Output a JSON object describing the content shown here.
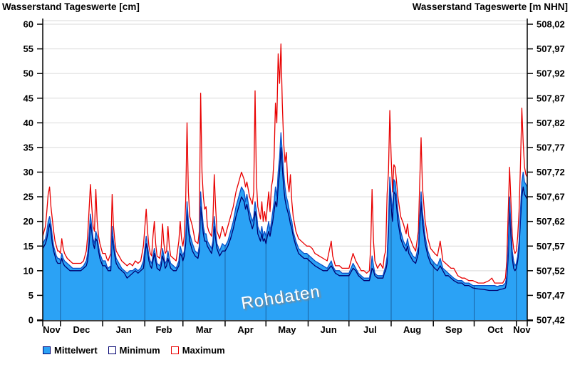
{
  "titles": {
    "left": "Wasserstand Tageswerte [cm]",
    "right": "Wasserstand Tageswerte [m NHN]"
  },
  "watermark": "Rohdaten",
  "legend": {
    "mittelwert": "Mittelwert",
    "minimum": "Minimum",
    "maximum": "Maximum"
  },
  "colors": {
    "fill": "#2BA2F5",
    "mean_line": "#0A50C8",
    "min_line": "#000070",
    "max_line": "#E80000",
    "grid": "#D9D9D9",
    "axis": "#000000",
    "month_line_on_fill": "rgba(10,35,80,0.5)"
  },
  "chart_data": {
    "type": "area",
    "title": "Wasserstand Tageswerte",
    "x_axis": {
      "tick_labels": [
        "Nov",
        "Dec",
        "Jan",
        "Feb",
        "Mar",
        "Apr",
        "May",
        "Jun",
        "Jul",
        "Aug",
        "Sep",
        "Oct",
        "Nov"
      ],
      "month_start_days": [
        0,
        13,
        44,
        75,
        103,
        134,
        164,
        195,
        225,
        256,
        287,
        317,
        348
      ],
      "total_days": 356
    },
    "y_left": {
      "label": "Wasserstand Tageswerte [cm]",
      "min": 0,
      "max": 60,
      "step": 5,
      "ticks": [
        0,
        5,
        10,
        15,
        20,
        25,
        30,
        35,
        40,
        45,
        50,
        55,
        60
      ]
    },
    "y_right": {
      "label": "Wasserstand Tageswerte [m NHN]",
      "tick_labels": [
        "507,42",
        "507,47",
        "507,52",
        "507,57",
        "507,62",
        "507,67",
        "507,72",
        "507,77",
        "507,82",
        "507,87",
        "507,92",
        "507,97",
        "508,02"
      ]
    },
    "series_names": [
      "Mittelwert",
      "Minimum",
      "Maximum"
    ],
    "legend_position": "bottom",
    "grid": true,
    "points_format": [
      "day",
      "mittelwert",
      "minimum",
      "maximum"
    ],
    "points": [
      [
        0,
        15.5,
        14.5,
        17
      ],
      [
        1,
        16,
        15,
        18
      ],
      [
        2,
        16.5,
        15.5,
        19
      ],
      [
        3,
        18,
        16.5,
        22
      ],
      [
        4,
        20,
        18,
        25.5
      ],
      [
        5,
        21,
        19.5,
        27
      ],
      [
        6,
        19.5,
        18,
        23
      ],
      [
        7,
        17,
        15.5,
        20.5
      ],
      [
        8,
        15,
        14,
        18
      ],
      [
        9,
        14,
        13,
        16
      ],
      [
        10,
        13,
        12,
        15
      ],
      [
        11,
        12.5,
        11.5,
        14
      ],
      [
        12,
        12.5,
        11.5,
        14
      ],
      [
        13,
        12,
        11.5,
        13.5
      ],
      [
        14,
        13.5,
        12.5,
        16.5
      ],
      [
        15,
        12.5,
        11.5,
        14.5
      ],
      [
        16,
        12,
        11,
        13.5
      ],
      [
        18,
        11.5,
        10.5,
        12.5
      ],
      [
        20,
        11,
        10,
        12
      ],
      [
        22,
        10.5,
        10,
        11.5
      ],
      [
        24,
        10.5,
        10,
        11.5
      ],
      [
        26,
        10.5,
        10,
        11.5
      ],
      [
        28,
        10.5,
        10,
        11.5
      ],
      [
        30,
        11,
        10.5,
        12
      ],
      [
        32,
        12,
        11,
        14
      ],
      [
        33,
        13.5,
        12,
        17
      ],
      [
        34,
        17,
        15,
        22
      ],
      [
        35,
        21.5,
        19.5,
        27.5
      ],
      [
        36,
        19,
        18,
        23
      ],
      [
        37,
        16.5,
        15.5,
        19
      ],
      [
        38,
        15.5,
        14.5,
        18
      ],
      [
        39,
        18,
        16.5,
        26.5
      ],
      [
        40,
        17,
        16,
        20
      ],
      [
        41,
        15,
        14,
        17
      ],
      [
        42,
        13.5,
        12.5,
        15.5
      ],
      [
        44,
        12,
        11,
        13.5
      ],
      [
        46,
        12,
        11,
        13.5
      ],
      [
        47,
        11,
        10.5,
        12.5
      ],
      [
        48,
        10.5,
        10,
        12
      ],
      [
        50,
        11,
        10,
        13.5
      ],
      [
        51,
        19,
        17,
        25.5
      ],
      [
        52,
        16,
        15,
        19
      ],
      [
        53,
        14,
        13,
        16
      ],
      [
        54,
        12.5,
        11.5,
        14
      ],
      [
        56,
        11.5,
        10.5,
        13
      ],
      [
        58,
        10.5,
        10,
        12
      ],
      [
        60,
        10,
        9.5,
        11.5
      ],
      [
        62,
        9.5,
        8.5,
        11
      ],
      [
        64,
        10,
        9,
        11.5
      ],
      [
        66,
        10,
        9.5,
        11
      ],
      [
        68,
        10.5,
        10,
        12
      ],
      [
        70,
        10,
        9.5,
        11.5
      ],
      [
        72,
        10.5,
        10,
        12
      ],
      [
        74,
        12,
        10.5,
        15
      ],
      [
        76,
        17,
        15.5,
        22.5
      ],
      [
        77,
        15,
        14,
        18
      ],
      [
        78,
        13,
        12,
        15
      ],
      [
        79,
        12,
        11,
        13.5
      ],
      [
        80,
        11.5,
        10.5,
        13
      ],
      [
        81,
        13,
        12,
        17
      ],
      [
        82,
        14.5,
        13.5,
        20
      ],
      [
        83,
        13,
        12,
        15.5
      ],
      [
        84,
        11.5,
        10.5,
        13
      ],
      [
        86,
        11,
        10,
        12.5
      ],
      [
        87,
        12,
        11,
        14.5
      ],
      [
        88,
        14.5,
        13,
        19.5
      ],
      [
        89,
        13,
        12,
        15.5
      ],
      [
        90,
        11.5,
        10.5,
        13.5
      ],
      [
        91,
        12,
        11,
        14
      ],
      [
        92,
        14,
        12.5,
        19
      ],
      [
        93,
        12.5,
        11.5,
        15
      ],
      [
        94,
        11.5,
        10.5,
        13
      ],
      [
        96,
        11,
        10,
        12.5
      ],
      [
        98,
        10.5,
        10,
        12
      ],
      [
        100,
        12,
        11,
        16
      ],
      [
        101,
        15,
        13.5,
        20
      ],
      [
        102,
        14,
        13,
        16.5
      ],
      [
        103,
        13,
        12,
        15
      ],
      [
        104,
        14,
        13,
        17
      ],
      [
        105,
        17,
        15.5,
        24
      ],
      [
        106,
        24,
        22,
        40
      ],
      [
        107,
        20,
        18.5,
        26
      ],
      [
        108,
        17.5,
        16,
        21
      ],
      [
        110,
        15.5,
        14,
        19
      ],
      [
        112,
        14,
        13,
        16
      ],
      [
        114,
        13.5,
        12.5,
        15.5
      ],
      [
        115,
        15,
        14,
        18
      ],
      [
        116,
        26,
        23,
        46
      ],
      [
        117,
        22,
        20,
        30
      ],
      [
        118,
        19,
        17.5,
        25
      ],
      [
        119,
        17.5,
        16,
        22.5
      ],
      [
        120,
        17.5,
        16,
        23
      ],
      [
        121,
        16,
        15,
        19
      ],
      [
        122,
        15.5,
        14.5,
        18
      ],
      [
        124,
        14.5,
        13.5,
        17
      ],
      [
        125,
        16,
        15,
        20
      ],
      [
        126,
        21,
        19,
        29.5
      ],
      [
        127,
        18,
        16.5,
        23
      ],
      [
        128,
        15.5,
        14.5,
        18
      ],
      [
        130,
        14,
        13,
        16.5
      ],
      [
        132,
        15.5,
        14,
        19
      ],
      [
        134,
        15,
        14,
        17
      ],
      [
        136,
        16,
        15,
        19
      ],
      [
        138,
        18,
        16.5,
        21
      ],
      [
        140,
        20,
        18.5,
        23
      ],
      [
        142,
        23,
        21,
        26
      ],
      [
        144,
        25,
        23,
        28
      ],
      [
        146,
        27,
        25,
        30
      ],
      [
        148,
        26,
        24,
        28.5
      ],
      [
        149,
        24,
        22.5,
        27
      ],
      [
        150,
        25.5,
        23.5,
        28
      ],
      [
        152,
        22,
        20.5,
        25
      ],
      [
        154,
        20,
        18.5,
        23.5
      ],
      [
        155,
        21,
        19.5,
        26
      ],
      [
        156,
        24,
        22,
        46.5
      ],
      [
        157,
        22,
        20.5,
        28
      ],
      [
        158,
        19,
        17.5,
        23
      ],
      [
        160,
        17.5,
        16,
        20.5
      ],
      [
        161,
        19,
        17.5,
        24
      ],
      [
        162,
        17,
        16,
        20
      ],
      [
        163,
        18,
        16.5,
        22
      ],
      [
        164,
        17,
        15.5,
        20
      ],
      [
        165,
        18.5,
        17,
        23
      ],
      [
        166,
        20,
        18,
        26
      ],
      [
        167,
        18,
        17,
        22
      ],
      [
        168,
        20,
        18.5,
        27
      ],
      [
        169,
        22,
        20,
        28.5
      ],
      [
        170,
        24,
        22,
        33
      ],
      [
        171,
        27,
        24,
        44
      ],
      [
        172,
        25,
        23,
        40
      ],
      [
        173,
        30,
        27,
        54
      ],
      [
        174,
        33,
        30,
        48
      ],
      [
        175,
        38,
        35,
        56
      ],
      [
        176,
        34,
        31,
        44
      ],
      [
        177,
        30,
        27,
        36
      ],
      [
        178,
        27,
        24.5,
        32
      ],
      [
        179,
        25,
        23,
        34
      ],
      [
        180,
        24,
        22,
        28
      ],
      [
        181,
        22.5,
        21,
        26
      ],
      [
        182,
        21,
        19.5,
        29.5
      ],
      [
        183,
        20,
        18.5,
        24
      ],
      [
        184,
        18,
        17,
        21
      ],
      [
        185,
        17,
        16,
        19.5
      ],
      [
        186,
        16,
        15,
        18
      ],
      [
        188,
        14.5,
        13.5,
        16.5
      ],
      [
        190,
        14,
        13,
        16
      ],
      [
        192,
        13.5,
        12.5,
        15.5
      ],
      [
        194,
        13.5,
        12.5,
        15
      ],
      [
        196,
        13,
        12,
        15
      ],
      [
        198,
        12.5,
        11.5,
        14.5
      ],
      [
        200,
        12,
        11,
        13.5
      ],
      [
        203,
        11.5,
        10.5,
        13
      ],
      [
        206,
        11,
        10,
        12.5
      ],
      [
        209,
        10.5,
        10,
        12
      ],
      [
        212,
        12,
        11,
        16
      ],
      [
        213,
        11,
        10.5,
        13
      ],
      [
        215,
        10,
        9.5,
        11
      ],
      [
        218,
        10,
        9,
        11
      ],
      [
        220,
        9.5,
        9,
        10.5
      ],
      [
        222,
        9.5,
        9,
        10.5
      ],
      [
        225,
        9.5,
        9,
        10.5
      ],
      [
        228,
        11.5,
        10.5,
        13.5
      ],
      [
        230,
        10.5,
        10,
        12
      ],
      [
        232,
        9.5,
        9,
        11
      ],
      [
        234,
        9,
        8.5,
        10
      ],
      [
        236,
        8.5,
        8,
        10
      ],
      [
        238,
        8.5,
        8,
        9.5
      ],
      [
        240,
        8.5,
        8,
        10
      ],
      [
        241,
        10,
        9,
        15
      ],
      [
        242,
        13,
        10.5,
        26.5
      ],
      [
        243,
        11,
        10,
        16
      ],
      [
        244,
        9.5,
        9,
        12
      ],
      [
        246,
        9,
        8.5,
        10.5
      ],
      [
        248,
        9,
        8.5,
        11.5
      ],
      [
        250,
        9,
        8.5,
        10.5
      ],
      [
        251,
        10,
        9.5,
        13
      ],
      [
        252,
        11,
        10,
        14
      ],
      [
        253,
        13,
        11.5,
        25.5
      ],
      [
        254,
        20,
        18,
        30
      ],
      [
        255,
        29,
        27,
        42.5
      ],
      [
        256,
        25,
        23,
        33
      ],
      [
        257,
        22,
        20,
        26
      ],
      [
        258,
        28.5,
        26,
        31.5
      ],
      [
        259,
        28,
        25.5,
        31
      ],
      [
        260,
        25,
        23,
        28
      ],
      [
        261,
        22,
        20,
        25
      ],
      [
        263,
        18,
        16.5,
        21
      ],
      [
        265,
        16,
        15,
        19.5
      ],
      [
        267,
        15,
        14,
        17.5
      ],
      [
        268,
        16.5,
        15,
        19.5
      ],
      [
        269,
        15,
        13.5,
        17
      ],
      [
        270,
        14,
        13,
        16.5
      ],
      [
        272,
        13,
        12,
        15
      ],
      [
        274,
        12.5,
        11.5,
        14
      ],
      [
        276,
        15,
        13.5,
        18
      ],
      [
        277,
        21,
        19,
        28
      ],
      [
        278,
        26,
        24,
        37
      ],
      [
        279,
        22,
        20,
        27
      ],
      [
        281,
        17,
        15.5,
        20
      ],
      [
        283,
        14,
        13,
        16.5
      ],
      [
        285,
        12.5,
        11.5,
        14.5
      ],
      [
        288,
        11.5,
        10.5,
        13.5
      ],
      [
        290,
        11,
        10,
        13
      ],
      [
        292,
        12.5,
        11,
        16
      ],
      [
        294,
        10.5,
        10,
        12
      ],
      [
        296,
        10,
        9,
        11.5
      ],
      [
        298,
        9.5,
        9,
        11
      ],
      [
        300,
        9,
        8.5,
        10.5
      ],
      [
        302,
        8.5,
        8,
        10.5
      ],
      [
        305,
        8,
        7.5,
        9
      ],
      [
        308,
        8,
        7.5,
        8.5
      ],
      [
        310,
        7.5,
        7,
        8.5
      ],
      [
        313,
        7.5,
        7,
        8
      ],
      [
        316,
        7,
        6.5,
        8
      ],
      [
        320,
        7,
        6.3,
        7.5
      ],
      [
        324,
        7,
        6.2,
        7.5
      ],
      [
        328,
        7,
        6,
        8
      ],
      [
        330,
        7,
        6,
        8.5
      ],
      [
        332,
        7,
        6,
        7.5
      ],
      [
        334,
        6.8,
        6,
        7.5
      ],
      [
        336,
        7,
        6.2,
        7.5
      ],
      [
        338,
        7,
        6.3,
        7.5
      ],
      [
        340,
        7.5,
        6.5,
        8.5
      ],
      [
        341,
        9,
        8,
        12
      ],
      [
        342,
        15,
        13,
        22
      ],
      [
        343,
        25,
        23,
        31
      ],
      [
        344,
        19,
        17,
        24
      ],
      [
        345,
        14,
        12.5,
        17
      ],
      [
        346,
        12,
        10.5,
        14.5
      ],
      [
        347,
        11,
        10,
        13.5
      ],
      [
        348,
        11.5,
        10.5,
        14
      ],
      [
        349,
        13,
        12,
        17
      ],
      [
        350,
        16,
        14.5,
        22
      ],
      [
        351,
        22,
        20,
        31
      ],
      [
        352,
        28,
        25,
        43
      ],
      [
        353,
        30,
        27,
        36
      ],
      [
        354,
        28,
        25.5,
        31
      ],
      [
        355,
        27.5,
        25,
        29.5
      ],
      [
        356,
        27,
        24.5,
        29
      ]
    ]
  }
}
